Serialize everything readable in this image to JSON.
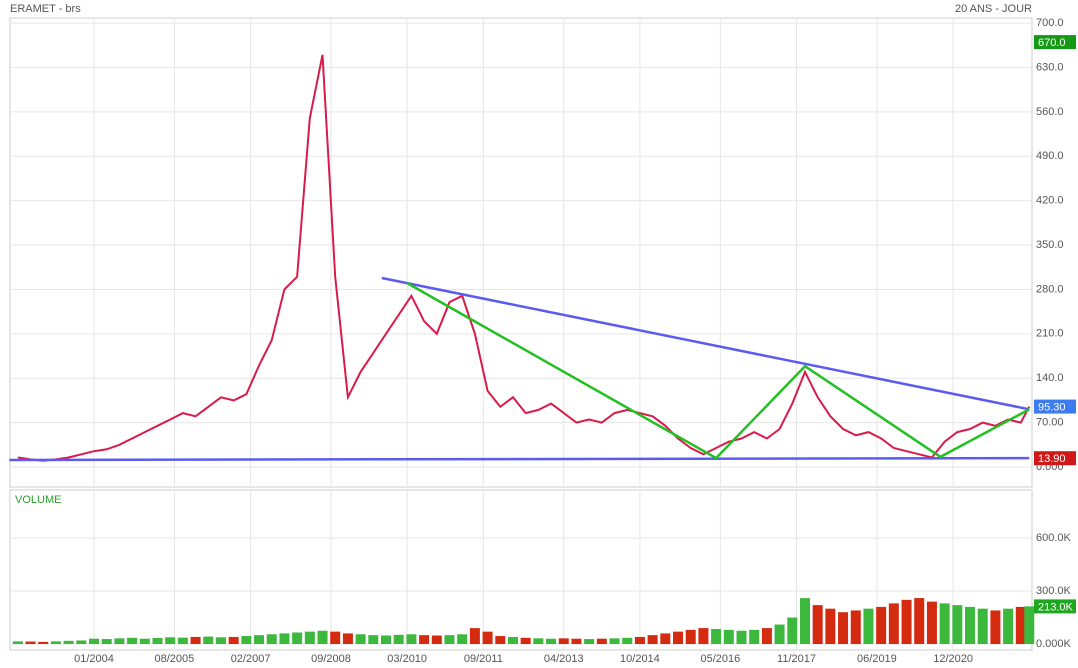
{
  "chart_data": [
    {
      "type": "line",
      "title": "ERAMET - brs",
      "subtitle": "20 ANS - JOUR",
      "color": "#d81b4a",
      "grid": true,
      "x": [
        "07/2002",
        "10/2002",
        "01/2003",
        "04/2003",
        "07/2003",
        "10/2003",
        "01/2004",
        "04/2004",
        "07/2004",
        "10/2004",
        "01/2005",
        "04/2005",
        "07/2005",
        "10/2005",
        "01/2006",
        "04/2006",
        "07/2006",
        "10/2006",
        "01/2007",
        "04/2007",
        "07/2007",
        "10/2007",
        "01/2008",
        "04/2008",
        "07/2008",
        "10/2008",
        "01/2009",
        "04/2009",
        "07/2009",
        "10/2009",
        "01/2010",
        "04/2010",
        "07/2010",
        "10/2010",
        "01/2011",
        "04/2011",
        "07/2011",
        "10/2011",
        "01/2012",
        "04/2012",
        "07/2012",
        "10/2012",
        "01/2013",
        "04/2013",
        "07/2013",
        "10/2013",
        "01/2014",
        "04/2014",
        "07/2014",
        "10/2014",
        "01/2015",
        "04/2015",
        "07/2015",
        "10/2015",
        "01/2016",
        "04/2016",
        "07/2016",
        "10/2016",
        "01/2017",
        "04/2017",
        "07/2017",
        "10/2017",
        "01/2018",
        "04/2018",
        "07/2018",
        "10/2018",
        "01/2019",
        "04/2019",
        "07/2019",
        "10/2019",
        "01/2020",
        "04/2020",
        "07/2020",
        "10/2020",
        "01/2021",
        "04/2021",
        "07/2021",
        "10/2021",
        "01/2022",
        "04/2022",
        "06/2022"
      ],
      "values": [
        15,
        12,
        10,
        12,
        15,
        20,
        25,
        28,
        35,
        45,
        55,
        65,
        75,
        85,
        80,
        95,
        110,
        105,
        115,
        160,
        200,
        280,
        300,
        550,
        650,
        300,
        110,
        150,
        180,
        210,
        240,
        270,
        230,
        210,
        260,
        270,
        210,
        120,
        95,
        110,
        85,
        90,
        100,
        85,
        70,
        75,
        70,
        85,
        90,
        85,
        80,
        65,
        45,
        30,
        20,
        30,
        40,
        45,
        55,
        45,
        60,
        100,
        150,
        110,
        80,
        60,
        50,
        55,
        45,
        30,
        25,
        20,
        15,
        40,
        55,
        60,
        70,
        65,
        75,
        70,
        95.3
      ],
      "ylim": [
        -31.5,
        708
      ],
      "yticks": [
        {
          "value": 0,
          "label": "0.000"
        },
        {
          "value": 70,
          "label": "70.00"
        },
        {
          "value": 140,
          "label": "140.0"
        },
        {
          "value": 210,
          "label": "210.0"
        },
        {
          "value": 280,
          "label": "280.0"
        },
        {
          "value": 350,
          "label": "350.0"
        },
        {
          "value": 420,
          "label": "420.0"
        },
        {
          "value": 490,
          "label": "490.0"
        },
        {
          "value": 560,
          "label": "560.0"
        },
        {
          "value": 630,
          "label": "630.0"
        },
        {
          "value": 700,
          "label": "700.0"
        }
      ],
      "xticks": [
        "01/2004",
        "08/2005",
        "02/2007",
        "09/2008",
        "03/2010",
        "09/2011",
        "04/2013",
        "10/2014",
        "05/2016",
        "11/2017",
        "06/2019",
        "12/2020"
      ],
      "trendlines": [
        {
          "color": "#5b5bf0",
          "points": [
            {
              "x": "09/2009",
              "y": 298
            },
            {
              "x": "06/2022",
              "y": 91
            }
          ]
        },
        {
          "color": "#5b5bf0",
          "points": [
            {
              "x": "05/2002",
              "y": 11
            },
            {
              "x": "06/2022",
              "y": 14
            }
          ]
        },
        {
          "color": "#22c022",
          "points": [
            {
              "x": "03/2010",
              "y": 290
            },
            {
              "x": "04/2016",
              "y": 14
            },
            {
              "x": "01/2018",
              "y": 159
            },
            {
              "x": "09/2020",
              "y": 16
            },
            {
              "x": "06/2022",
              "y": 91
            }
          ]
        }
      ],
      "markers": [
        {
          "value": 670,
          "label": "670.0",
          "color": "#169a16"
        },
        {
          "value": 95.3,
          "label": "95.30",
          "color": "#3d7cf0"
        },
        {
          "value": 13.9,
          "label": "13.90",
          "color": "#d01818"
        }
      ]
    },
    {
      "type": "bar",
      "title": "VOLUME",
      "color": "#d42a10",
      "up_color": "#3cb83c",
      "grid": true,
      "values": [
        15000,
        14000,
        12000,
        15000,
        18000,
        20000,
        30000,
        28000,
        32000,
        35000,
        30000,
        34000,
        38000,
        36000,
        40000,
        42000,
        38000,
        40000,
        45000,
        50000,
        55000,
        60000,
        65000,
        70000,
        75000,
        70000,
        60000,
        55000,
        50000,
        48000,
        52000,
        55000,
        50000,
        48000,
        50000,
        55000,
        90000,
        70000,
        45000,
        40000,
        35000,
        32000,
        30000,
        32000,
        30000,
        28000,
        30000,
        32000,
        35000,
        40000,
        50000,
        60000,
        70000,
        80000,
        90000,
        85000,
        80000,
        75000,
        80000,
        90000,
        110000,
        150000,
        260000,
        220000,
        200000,
        180000,
        190000,
        200000,
        210000,
        230000,
        250000,
        260000,
        240000,
        230000,
        220000,
        210000,
        200000,
        190000,
        200000,
        210000,
        213000
      ],
      "ylim": [
        -34000,
        872000
      ],
      "yticks": [
        {
          "value": 0,
          "label": "0.000K"
        },
        {
          "value": 300000,
          "label": "300.0K"
        },
        {
          "value": 600000,
          "label": "600.0K"
        }
      ],
      "markers": [
        {
          "value": 213000,
          "label": "213.0K",
          "color": "#1fa81f"
        }
      ]
    }
  ]
}
